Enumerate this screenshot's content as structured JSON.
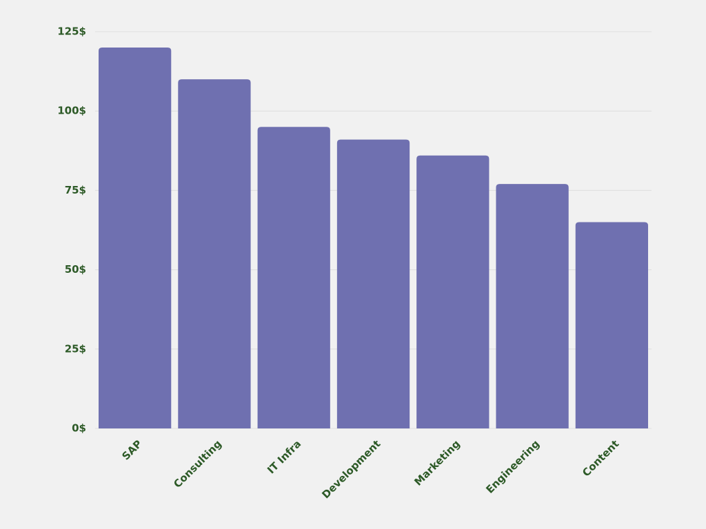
{
  "chart_data": {
    "type": "bar",
    "categories": [
      "SAP",
      "Consulting",
      "IT Infra",
      "Development",
      "Marketing",
      "Engineering",
      "Content"
    ],
    "values": [
      120,
      110,
      95,
      91,
      86,
      77,
      65
    ],
    "color": "#6f70b0",
    "ylim": [
      0,
      125
    ],
    "yticks": [
      {
        "value": 0,
        "label": "0$"
      },
      {
        "value": 25,
        "label": "25$"
      },
      {
        "value": 50,
        "label": "50$"
      },
      {
        "value": 75,
        "label": "75$"
      },
      {
        "value": 100,
        "label": "100$"
      },
      {
        "value": 125,
        "label": "125$"
      }
    ],
    "grid": true
  }
}
